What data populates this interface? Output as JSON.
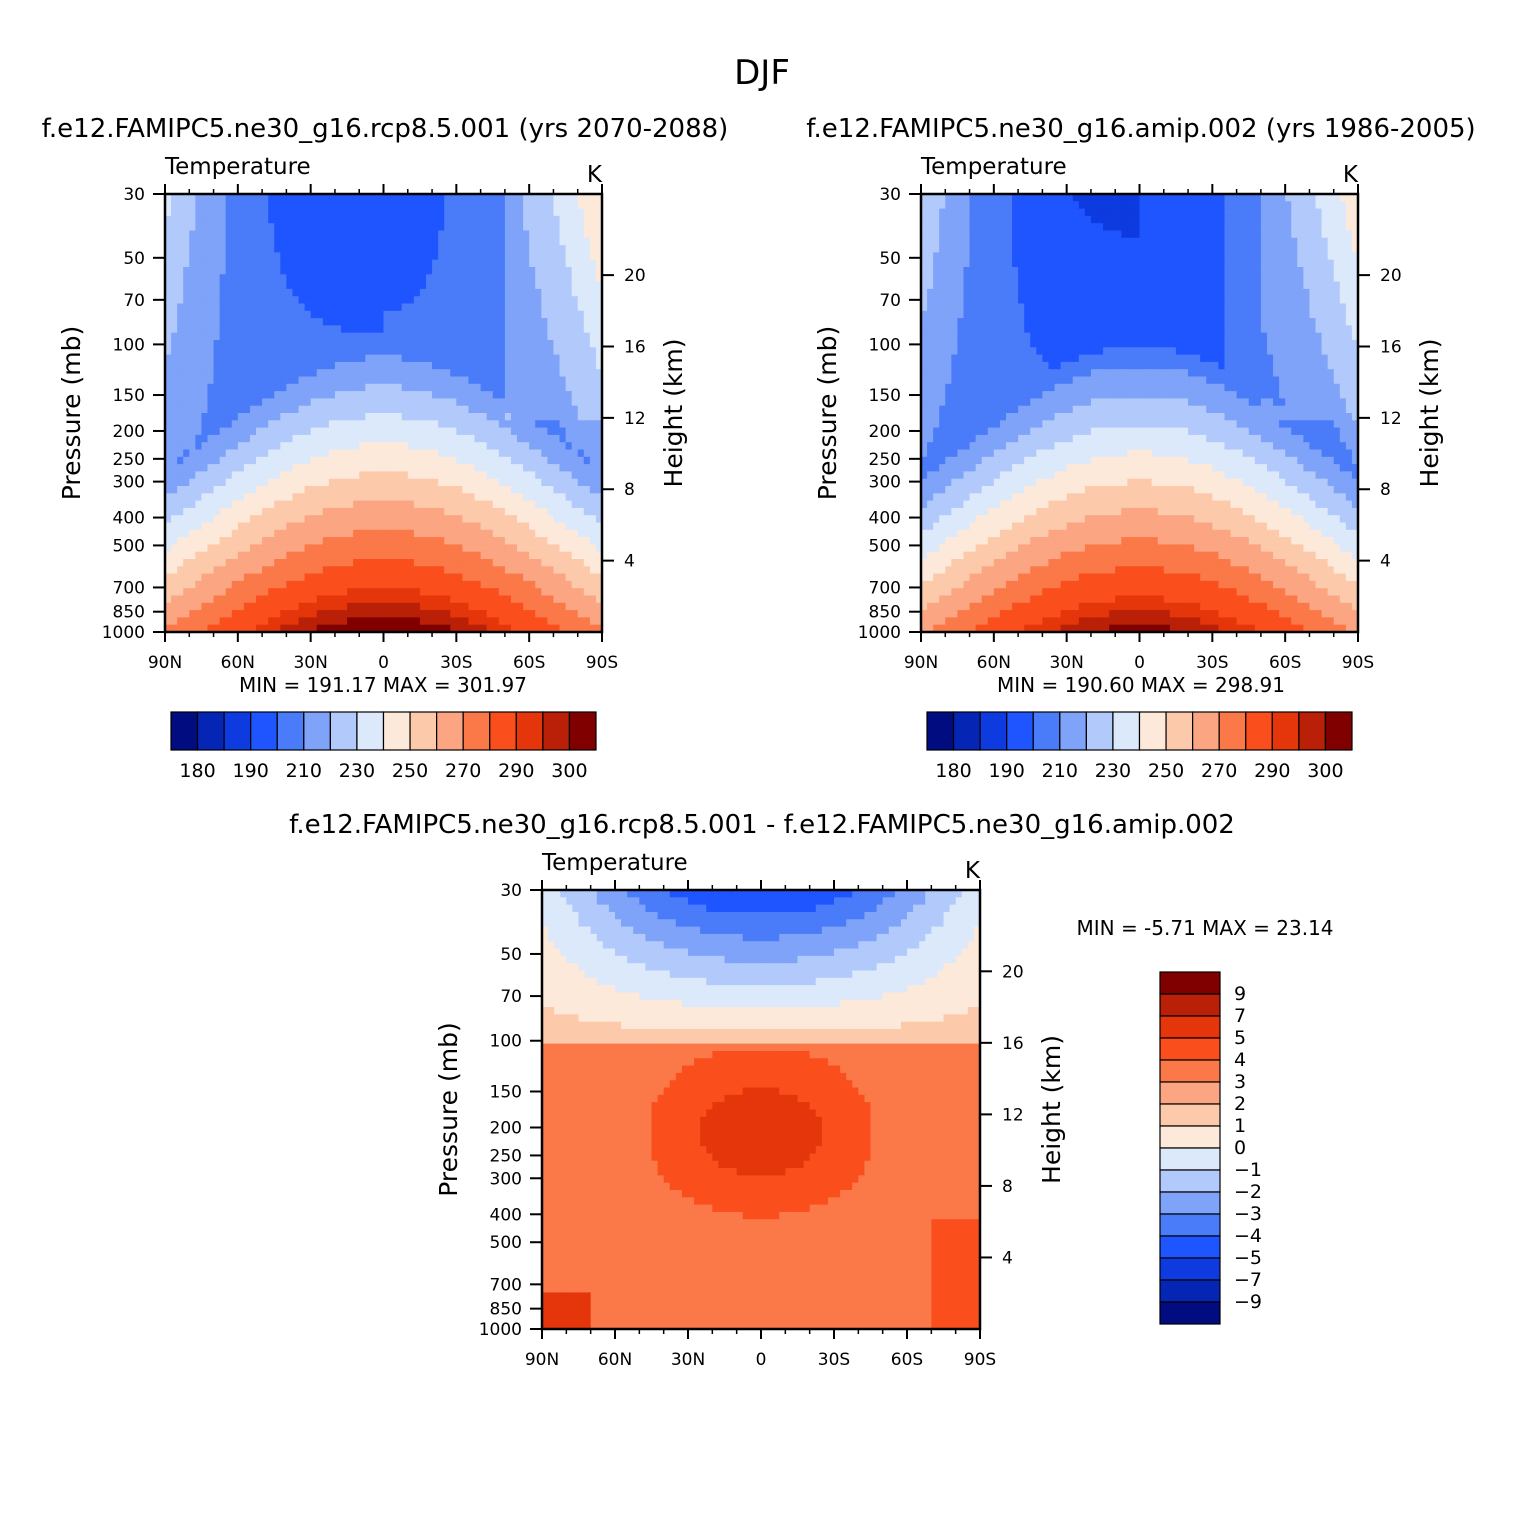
{
  "figure": {
    "title": "DJF"
  },
  "panels": [
    {
      "id": "rcp85",
      "case_title": "f.e12.FAMIPC5.ne30_g16.rcp8.5.001 (yrs 2070-2088)",
      "left_label": "Temperature",
      "right_label": "K",
      "y_label": "Pressure (mb)",
      "y2_label": "Height (km)",
      "stats": "MIN = 191.17   MAX = 301.97"
    },
    {
      "id": "amip",
      "case_title": "f.e12.FAMIPC5.ne30_g16.amip.002 (yrs 1986-2005)",
      "left_label": "Temperature",
      "right_label": "K",
      "y_label": "Pressure (mb)",
      "y2_label": "Height (km)",
      "stats": "MIN = 190.60   MAX = 298.91"
    },
    {
      "id": "diff",
      "case_title": "f.e12.FAMIPC5.ne30_g16.rcp8.5.001 - f.e12.FAMIPC5.ne30_g16.amip.002",
      "left_label": "Temperature",
      "right_label": "K",
      "y_label": "Pressure (mb)",
      "y2_label": "Height (km)",
      "stats": "MIN =   -5.71   MAX =   23.14"
    }
  ],
  "chart_data": [
    {
      "type": "heatmap",
      "title": "f.e12.FAMIPC5.ne30_g16.rcp8.5.001 (yrs 2070-2088)",
      "variable": "Temperature",
      "units": "K",
      "x_ticks": [
        "90N",
        "60N",
        "30N",
        "0",
        "30S",
        "60S",
        "90S"
      ],
      "y_ticks": [
        30,
        50,
        70,
        100,
        150,
        200,
        250,
        300,
        400,
        500,
        700,
        850,
        1000
      ],
      "y2_ticks": [
        4,
        8,
        12,
        16,
        20
      ],
      "xlabel": "",
      "ylabel": "Pressure (mb)",
      "y2label": "Height (km)",
      "x_range": [
        90,
        -90
      ],
      "y_range": [
        1000,
        30
      ],
      "min": 191.17,
      "max": 301.97,
      "contour_levels": [
        180,
        185,
        190,
        200,
        210,
        220,
        230,
        240,
        250,
        260,
        270,
        280,
        290,
        295,
        300
      ],
      "colorbar_labels": [
        "180",
        "190",
        "210",
        "230",
        "250",
        "270",
        "290",
        "300"
      ],
      "colorbar_colors": [
        "#000c80",
        "#0525b5",
        "#0d3be0",
        "#1e55ff",
        "#4a7bf8",
        "#7ea3f8",
        "#b2c9fb",
        "#dbe9fb",
        "#fde9da",
        "#fcc9ab",
        "#fba582",
        "#fb7848",
        "#fa4e1c",
        "#e4360a",
        "#b92007",
        "#800000"
      ]
    },
    {
      "type": "heatmap",
      "title": "f.e12.FAMIPC5.ne30_g16.amip.002 (yrs 1986-2005)",
      "variable": "Temperature",
      "units": "K",
      "x_ticks": [
        "90N",
        "60N",
        "30N",
        "0",
        "30S",
        "60S",
        "90S"
      ],
      "y_ticks": [
        30,
        50,
        70,
        100,
        150,
        200,
        250,
        300,
        400,
        500,
        700,
        850,
        1000
      ],
      "y2_ticks": [
        4,
        8,
        12,
        16,
        20
      ],
      "xlabel": "",
      "ylabel": "Pressure (mb)",
      "y2label": "Height (km)",
      "x_range": [
        90,
        -90
      ],
      "y_range": [
        1000,
        30
      ],
      "min": 190.6,
      "max": 298.91,
      "contour_levels": [
        180,
        185,
        190,
        200,
        210,
        220,
        230,
        240,
        250,
        260,
        270,
        280,
        290,
        295,
        300
      ],
      "colorbar_labels": [
        "180",
        "190",
        "210",
        "230",
        "250",
        "270",
        "290",
        "300"
      ],
      "colorbar_colors": [
        "#000c80",
        "#0525b5",
        "#0d3be0",
        "#1e55ff",
        "#4a7bf8",
        "#7ea3f8",
        "#b2c9fb",
        "#dbe9fb",
        "#fde9da",
        "#fcc9ab",
        "#fba582",
        "#fb7848",
        "#fa4e1c",
        "#e4360a",
        "#b92007",
        "#800000"
      ]
    },
    {
      "type": "heatmap",
      "title": "f.e12.FAMIPC5.ne30_g16.rcp8.5.001 - f.e12.FAMIPC5.ne30_g16.amip.002",
      "variable": "Temperature",
      "units": "K",
      "x_ticks": [
        "90N",
        "60N",
        "30N",
        "0",
        "30S",
        "60S",
        "90S"
      ],
      "y_ticks": [
        30,
        50,
        70,
        100,
        150,
        200,
        250,
        300,
        400,
        500,
        700,
        850,
        1000
      ],
      "y2_ticks": [
        4,
        8,
        12,
        16,
        20
      ],
      "xlabel": "",
      "ylabel": "Pressure (mb)",
      "y2label": "Height (km)",
      "x_range": [
        90,
        -90
      ],
      "y_range": [
        1000,
        30
      ],
      "min": -5.71,
      "max": 23.14,
      "contour_levels": [
        -9,
        -7,
        -5,
        -4,
        -3,
        -2,
        -1,
        0,
        1,
        2,
        3,
        4,
        5,
        7,
        9
      ],
      "colorbar_labels": [
        "9",
        "7",
        "5",
        "4",
        "3",
        "2",
        "1",
        "0",
        "−1",
        "−2",
        "−3",
        "−4",
        "−5",
        "−7",
        "−9"
      ],
      "colorbar_colors": [
        "#800000",
        "#b92007",
        "#e4360a",
        "#fa4e1c",
        "#fb7848",
        "#fba582",
        "#fcc9ab",
        "#fde9da",
        "#dbe9fb",
        "#b2c9fb",
        "#7ea3f8",
        "#4a7bf8",
        "#1e55ff",
        "#0d3be0",
        "#0525b5",
        "#000c80"
      ]
    }
  ]
}
